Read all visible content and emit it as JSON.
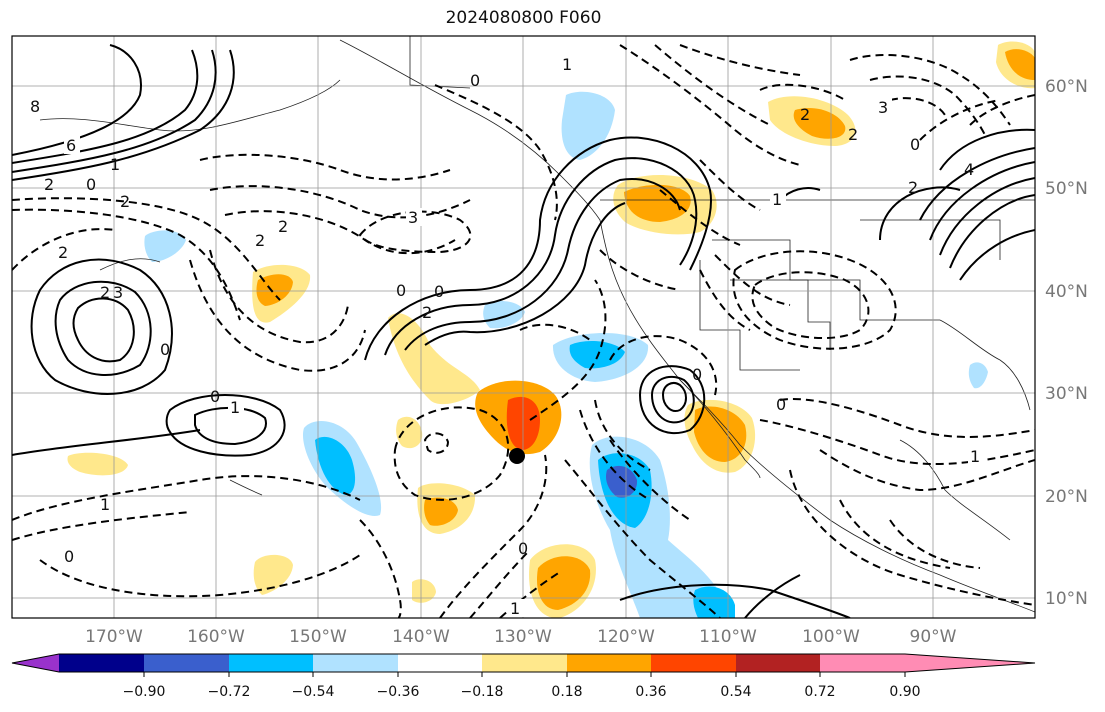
{
  "title": "2024080800 F060",
  "map": {
    "lon_labels": [
      "170°W",
      "160°W",
      "150°W",
      "140°W",
      "130°W",
      "120°W",
      "110°W",
      "100°W",
      "90°W"
    ],
    "lat_labels": [
      "60°N",
      "50°N",
      "40°N",
      "30°N",
      "20°N",
      "10°N"
    ],
    "contour_labels": [
      "8",
      "6",
      "2",
      "0",
      "1",
      "2",
      "2",
      "2",
      "2",
      "3",
      "3",
      "2",
      "0",
      "2",
      "0",
      "1",
      "0",
      "3",
      "2",
      "2",
      "0",
      "4",
      "1",
      "2",
      "1",
      "0",
      "0",
      "0",
      "0",
      "1",
      "1",
      "0",
      "0",
      "1"
    ],
    "storm_marker": "storm-center"
  },
  "colorbar": {
    "ticks": [
      "−0.90",
      "−0.72",
      "−0.54",
      "−0.36",
      "−0.18",
      "0.18",
      "0.36",
      "0.54",
      "0.72",
      "0.90"
    ],
    "colors": [
      "#9932cc",
      "#00008b",
      "#3a5fcd",
      "#00bfff",
      "#b0e2ff",
      "#ffffff",
      "#ffe88c",
      "#ffa500",
      "#ff4500",
      "#b22222",
      "#ff8cb4"
    ]
  }
}
